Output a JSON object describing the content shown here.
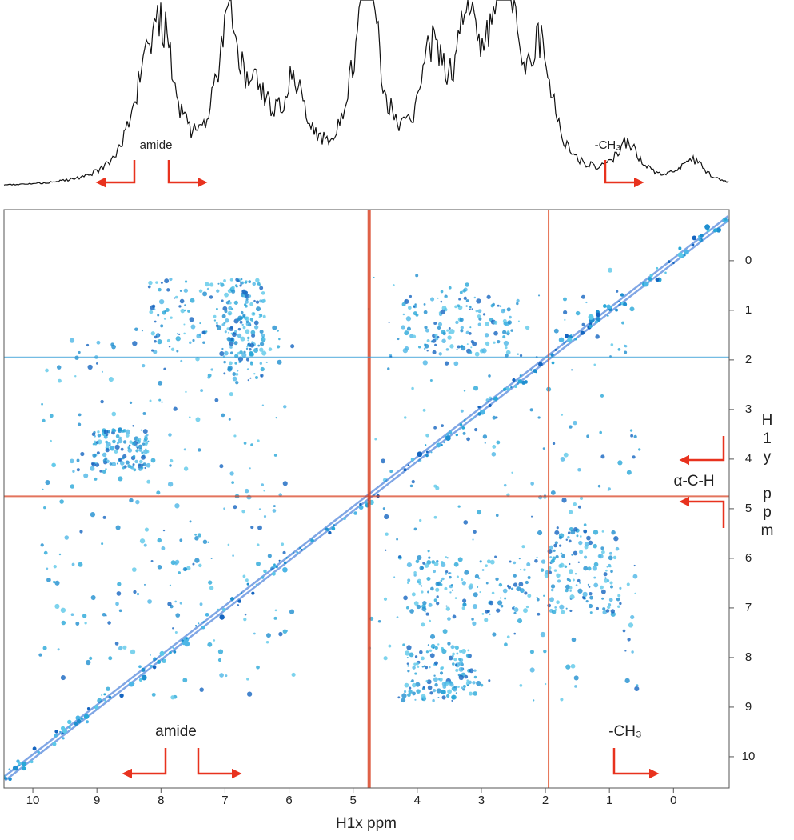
{
  "chart_data": {
    "type": "nmr2d",
    "xlabel": "H1x ppm",
    "ylabel": "H1y ppm",
    "xlim": [
      10.45,
      -0.87
    ],
    "ylim": [
      -1.03,
      10.63
    ],
    "xticks": [
      10,
      9,
      8,
      7,
      6,
      5,
      4,
      3,
      2,
      1,
      0
    ],
    "yticks": [
      0,
      1,
      2,
      3,
      4,
      5,
      6,
      7,
      8,
      9,
      10
    ],
    "solvent_lines": [
      4.75,
      1.95
    ],
    "annotations": [
      "amide",
      "-CH₃",
      "amide",
      "-CH₃",
      "α-C-H"
    ]
  }
}
